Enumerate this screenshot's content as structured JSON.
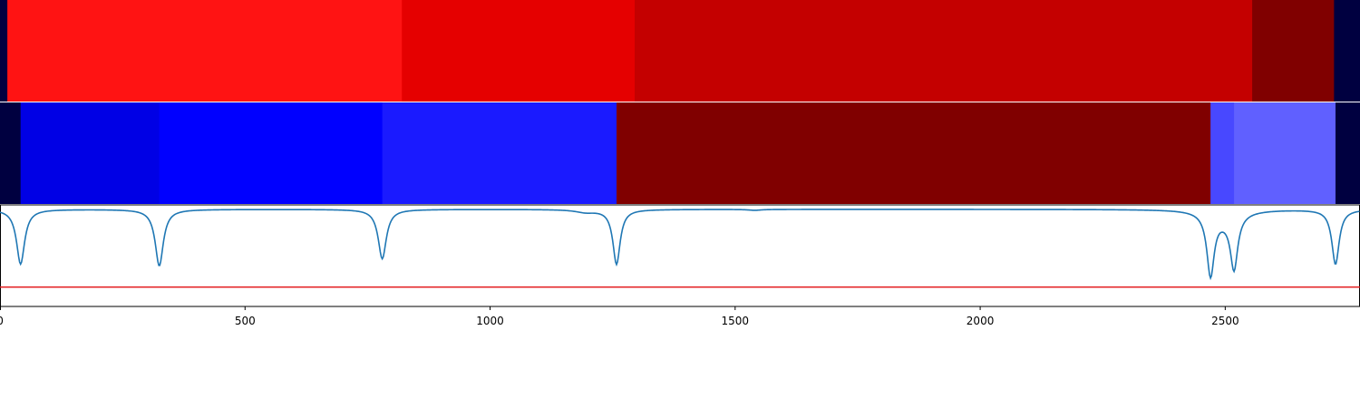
{
  "chart_data": {
    "type": "heatmap",
    "xlim": [
      0,
      2775
    ],
    "x_ticks": [
      0,
      500,
      1000,
      1500,
      2000,
      2500
    ],
    "x_tick_labels": [
      "0",
      "500",
      "1000",
      "1500",
      "2000",
      "2500"
    ],
    "rows": [
      {
        "segments": [
          {
            "start": 0,
            "end": 15,
            "color": "#000040"
          },
          {
            "start": 15,
            "end": 820,
            "color": "#ff1313"
          },
          {
            "start": 820,
            "end": 1295,
            "color": "#e50000"
          },
          {
            "start": 1295,
            "end": 2555,
            "color": "#c40000"
          },
          {
            "start": 2555,
            "end": 2722,
            "color": "#800000"
          },
          {
            "start": 2722,
            "end": 2775,
            "color": "#000040"
          }
        ]
      },
      {
        "segments": [
          {
            "start": 0,
            "end": 42,
            "color": "#000040"
          },
          {
            "start": 42,
            "end": 325,
            "color": "#0000e5"
          },
          {
            "start": 325,
            "end": 780,
            "color": "#0000ff"
          },
          {
            "start": 780,
            "end": 1258,
            "color": "#1a1aff"
          },
          {
            "start": 1258,
            "end": 2470,
            "color": "#800000"
          },
          {
            "start": 2470,
            "end": 2518,
            "color": "#4848ff"
          },
          {
            "start": 2518,
            "end": 2725,
            "color": "#6060ff"
          },
          {
            "start": 2725,
            "end": 2775,
            "color": "#000040"
          }
        ]
      }
    ],
    "line_panel": {
      "ylim": [
        -1.1,
        0.05
      ],
      "series": [
        {
          "color": "#1f77b4",
          "baseline": 0,
          "dips": [
            {
              "x": 42,
              "depth": 0.62,
              "width": 10
            },
            {
              "x": 325,
              "depth": 0.64,
              "width": 10
            },
            {
              "x": 780,
              "depth": 0.56,
              "width": 10
            },
            {
              "x": 1195,
              "depth": 0.03,
              "width": 25
            },
            {
              "x": 1258,
              "depth": 0.62,
              "width": 9
            },
            {
              "x": 1540,
              "depth": 0.01,
              "width": 15
            },
            {
              "x": 2470,
              "depth": 0.7,
              "width": 9
            },
            {
              "x": 2500,
              "depth": 0.1,
              "width": 35
            },
            {
              "x": 2518,
              "depth": 0.6,
              "width": 9
            },
            {
              "x": 2725,
              "depth": 0.62,
              "width": 9
            }
          ]
        }
      ],
      "hlines": [
        {
          "y": -0.88,
          "color": "#e31a1c"
        }
      ]
    }
  }
}
